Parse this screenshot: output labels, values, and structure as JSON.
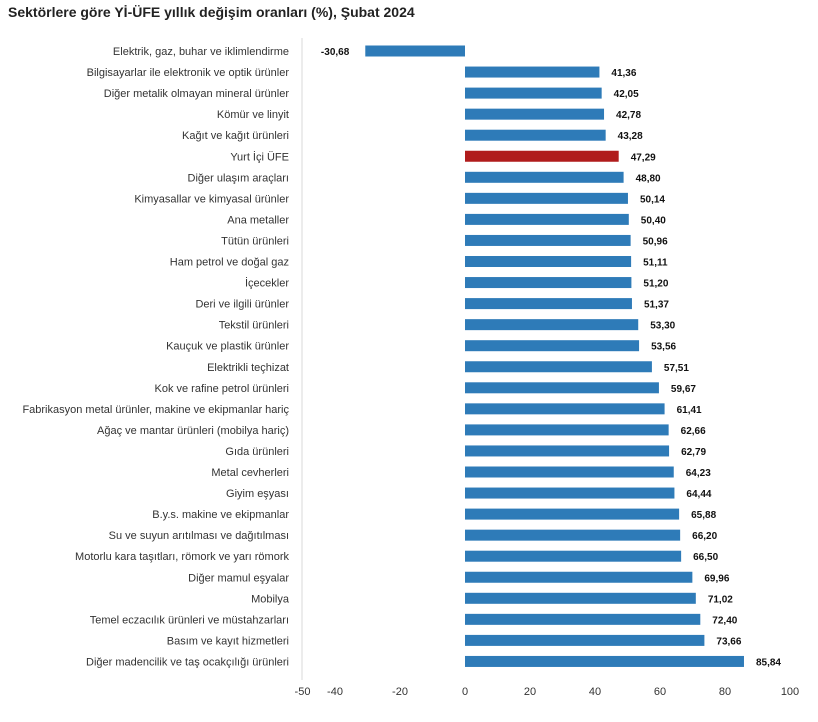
{
  "chart_data": {
    "type": "bar",
    "orientation": "horizontal",
    "title": "Sektörlere göre Yİ-ÜFE yıllık değişim oranları (%), Şubat 2024",
    "xlim": [
      -50,
      100
    ],
    "xticks": [
      {
        "value": -50,
        "label": "-50"
      },
      {
        "value": -40,
        "label": "-40"
      },
      {
        "value": -20,
        "label": "-20"
      },
      {
        "value": 0,
        "label": "0"
      },
      {
        "value": 20,
        "label": "20"
      },
      {
        "value": 40,
        "label": "40"
      },
      {
        "value": 60,
        "label": "60"
      },
      {
        "value": 80,
        "label": "80"
      },
      {
        "value": 100,
        "label": "100"
      }
    ],
    "colors": {
      "default": "#2e7bb8",
      "highlight": "#b01c1c"
    },
    "highlight_category": "Yurt İçi ÜFE",
    "categories": [
      "Elektrik, gaz, buhar ve iklimlendirme",
      "Bilgisayarlar ile elektronik ve optik ürünler",
      "Diğer metalik olmayan mineral ürünler",
      "Kömür ve linyit",
      "Kağıt ve kağıt ürünleri",
      "Yurt İçi ÜFE",
      "Diğer ulaşım araçları",
      "Kimyasallar ve kimyasal ürünler",
      "Ana metaller",
      "Tütün ürünleri",
      "Ham petrol ve doğal gaz",
      "İçecekler",
      "Deri ve ilgili ürünler",
      "Tekstil ürünleri",
      "Kauçuk ve plastik ürünler",
      "Elektrikli teçhizat",
      "Kok ve rafine petrol ürünleri",
      "Fabrikasyon metal ürünler, makine ve ekipmanlar hariç",
      "Ağaç ve mantar ürünleri (mobilya hariç)",
      "Gıda ürünleri",
      "Metal cevherleri",
      "Giyim eşyası",
      "B.y.s. makine ve ekipmanlar",
      "Su ve suyun arıtılması ve dağıtılması",
      "Motorlu kara taşıtları, römork ve yarı römork",
      "Diğer mamul eşyalar",
      "Mobilya",
      "Temel eczacılık ürünleri ve müstahzarları",
      "Basım ve kayıt hizmetleri",
      "Diğer madencilik ve taş ocakçılığı ürünleri"
    ],
    "values": [
      -30.68,
      41.36,
      42.05,
      42.78,
      43.28,
      47.29,
      48.8,
      50.14,
      50.4,
      50.96,
      51.11,
      51.2,
      51.37,
      53.3,
      53.56,
      57.51,
      59.67,
      61.41,
      62.66,
      62.79,
      64.23,
      64.44,
      65.88,
      66.2,
      66.5,
      69.96,
      71.02,
      72.4,
      73.66,
      85.84
    ],
    "value_labels": [
      "-30,68",
      "41,36",
      "42,05",
      "42,78",
      "43,28",
      "47,29",
      "48,80",
      "50,14",
      "50,40",
      "50,96",
      "51,11",
      "51,20",
      "51,37",
      "53,30",
      "53,56",
      "57,51",
      "59,67",
      "61,41",
      "62,66",
      "62,79",
      "64,23",
      "64,44",
      "65,88",
      "66,20",
      "66,50",
      "69,96",
      "71,02",
      "72,40",
      "73,66",
      "85,84"
    ]
  }
}
